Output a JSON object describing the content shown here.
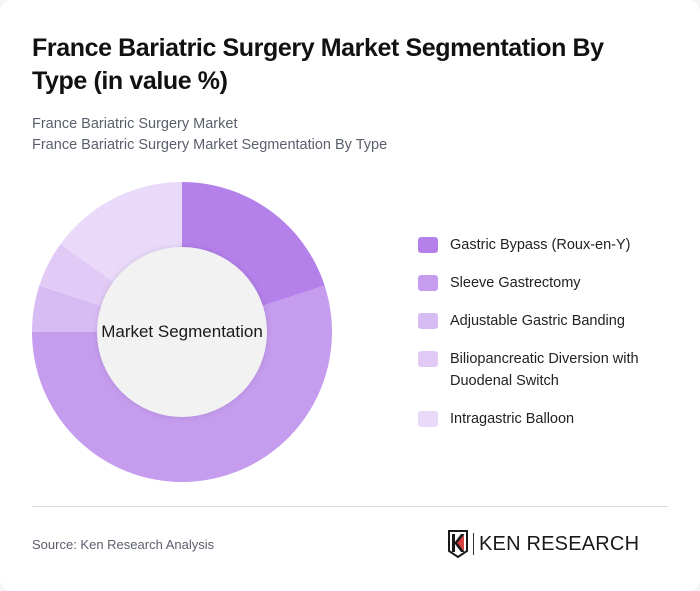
{
  "header": {
    "title": "France Bariatric Surgery Market Segmentation By Type (in value %)",
    "subtitle_line1": "France Bariatric Surgery Market",
    "subtitle_line2": "France Bariatric Surgery Market Segmentation By Type"
  },
  "chart": {
    "center_label": "Market Segmentation"
  },
  "legend": {
    "items": [
      {
        "label": "Gastric Bypass (Roux-en-Y)",
        "color": "#b480ea"
      },
      {
        "label": "Sleeve Gastrectomy",
        "color": "#c59cee"
      },
      {
        "label": "Adjustable Gastric Banding",
        "color": "#d7bcf4"
      },
      {
        "label": "Biliopancreatic Diversion with Duodenal Switch",
        "color": "#e1cbf6"
      },
      {
        "label": "Intragastric Balloon",
        "color": "#e9dafa"
      }
    ]
  },
  "footer": {
    "source": "Source: Ken Research Analysis",
    "brand": "KEN RESEARCH"
  },
  "chart_data": {
    "type": "pie",
    "title": "France Bariatric Surgery Market Segmentation By Type (in value %)",
    "subtitle": "France Bariatric Surgery Market Segmentation By Type",
    "center_label": "Market Segmentation",
    "donut": true,
    "categories": [
      "Gastric Bypass (Roux-en-Y)",
      "Sleeve Gastrectomy",
      "Adjustable Gastric Banding",
      "Biliopancreatic Diversion with Duodenal Switch",
      "Intragastric Balloon"
    ],
    "values": [
      20,
      55,
      5,
      5,
      15
    ],
    "colors": [
      "#b480ea",
      "#c59cee",
      "#d7bcf4",
      "#e1cbf6",
      "#e9dafa"
    ],
    "start_angle": "12 o'clock, clockwise",
    "legend_position": "right",
    "units": "%"
  }
}
